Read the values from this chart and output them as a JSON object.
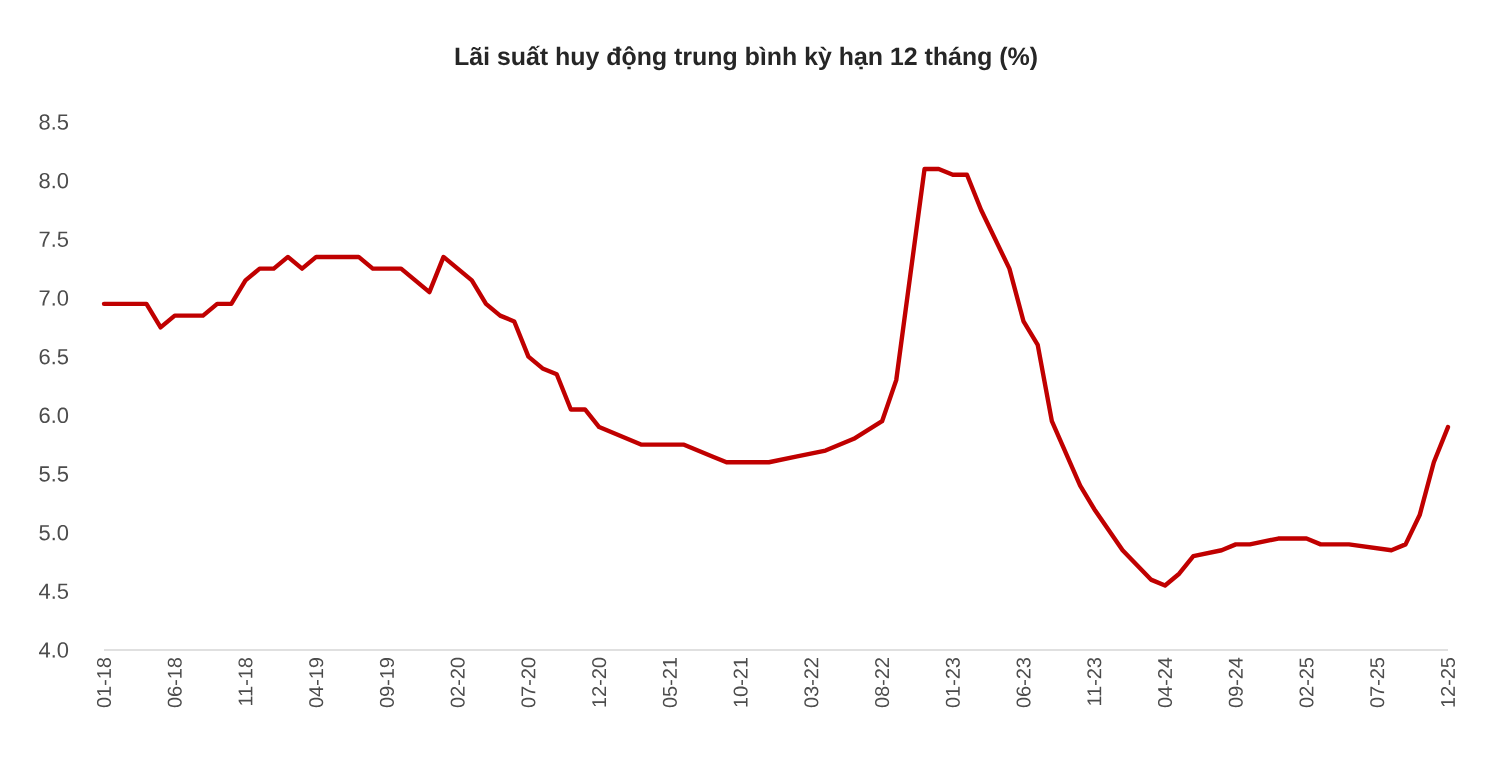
{
  "chart_data": {
    "type": "line",
    "title": "Lãi suất huy động trung bình kỳ hạn 12 tháng (%)",
    "x": [
      "2018-01",
      "2018-04",
      "2018-05",
      "2018-06",
      "2018-08",
      "2018-09",
      "2018-10",
      "2018-11",
      "2018-12",
      "2019-01",
      "2019-02",
      "2019-03",
      "2019-04",
      "2019-07",
      "2019-08",
      "2019-10",
      "2019-11",
      "2019-12",
      "2020-01",
      "2020-02",
      "2020-03",
      "2020-04",
      "2020-05",
      "2020-06",
      "2020-07",
      "2020-08",
      "2020-09",
      "2020-10",
      "2020-11",
      "2020-12",
      "2021-01",
      "2021-02",
      "2021-03",
      "2021-04",
      "2021-06",
      "2021-07",
      "2021-08",
      "2021-09",
      "2021-12",
      "2022-02",
      "2022-04",
      "2022-06",
      "2022-08",
      "2022-09",
      "2022-10",
      "2022-11",
      "2022-12",
      "2023-01",
      "2023-02",
      "2023-03",
      "2023-05",
      "2023-06",
      "2023-07",
      "2023-08",
      "2023-10",
      "2023-11",
      "2024-01",
      "2024-03",
      "2024-04",
      "2024-05",
      "2024-06",
      "2024-08",
      "2024-09",
      "2024-10",
      "2024-12",
      "2025-02",
      "2025-03",
      "2025-05",
      "2025-08",
      "2025-09",
      "2025-10",
      "2025-11",
      "2025-12"
    ],
    "series": [
      {
        "color": "#c00000",
        "values": [
          6.95,
          6.95,
          6.75,
          6.85,
          6.85,
          6.95,
          6.95,
          7.15,
          7.25,
          7.25,
          7.35,
          7.25,
          7.35,
          7.35,
          7.25,
          7.25,
          7.15,
          7.05,
          7.35,
          7.25,
          7.15,
          6.95,
          6.85,
          6.8,
          6.5,
          6.4,
          6.35,
          6.05,
          6.05,
          5.9,
          5.85,
          5.8,
          5.75,
          5.75,
          5.75,
          5.7,
          5.65,
          5.6,
          5.6,
          5.65,
          5.7,
          5.8,
          5.95,
          6.3,
          7.2,
          8.1,
          8.1,
          8.05,
          8.05,
          7.75,
          7.25,
          6.8,
          6.6,
          5.95,
          5.4,
          5.2,
          4.85,
          4.6,
          4.55,
          4.65,
          4.8,
          4.85,
          4.9,
          4.9,
          4.95,
          4.95,
          4.9,
          4.9,
          4.85,
          4.9,
          5.15,
          5.6,
          5.9
        ]
      }
    ],
    "xlim": [
      "2018-01",
      "2025-12"
    ],
    "xticks": [
      {
        "value": "2018-01",
        "label": "01-18"
      },
      {
        "value": "2018-06",
        "label": "06-18"
      },
      {
        "value": "2018-11",
        "label": "11-18"
      },
      {
        "value": "2019-04",
        "label": "04-19"
      },
      {
        "value": "2019-09",
        "label": "09-19"
      },
      {
        "value": "2020-02",
        "label": "02-20"
      },
      {
        "value": "2020-07",
        "label": "07-20"
      },
      {
        "value": "2020-12",
        "label": "12-20"
      },
      {
        "value": "2021-05",
        "label": "05-21"
      },
      {
        "value": "2021-10",
        "label": "10-21"
      },
      {
        "value": "2022-03",
        "label": "03-22"
      },
      {
        "value": "2022-08",
        "label": "08-22"
      },
      {
        "value": "2023-01",
        "label": "01-23"
      },
      {
        "value": "2023-06",
        "label": "06-23"
      },
      {
        "value": "2023-11",
        "label": "11-23"
      },
      {
        "value": "2024-04",
        "label": "04-24"
      },
      {
        "value": "2024-09",
        "label": "09-24"
      },
      {
        "value": "2025-02",
        "label": "02-25"
      },
      {
        "value": "2025-07",
        "label": "07-25"
      },
      {
        "value": "2025-12",
        "label": "12-25"
      }
    ],
    "ylim": [
      4.0,
      8.5
    ],
    "yticks": [
      {
        "value": 4.0,
        "label": "4.0"
      },
      {
        "value": 4.5,
        "label": "4.5"
      },
      {
        "value": 5.0,
        "label": "5.0"
      },
      {
        "value": 5.5,
        "label": "5.5"
      },
      {
        "value": 6.0,
        "label": "6.0"
      },
      {
        "value": 6.5,
        "label": "6.5"
      },
      {
        "value": 7.0,
        "label": "7.0"
      },
      {
        "value": 7.5,
        "label": "7.5"
      },
      {
        "value": 8.0,
        "label": "8.0"
      },
      {
        "value": 8.5,
        "label": "8.5"
      }
    ],
    "grid": false,
    "legend": false,
    "marker": "none",
    "line_style": "solid"
  }
}
